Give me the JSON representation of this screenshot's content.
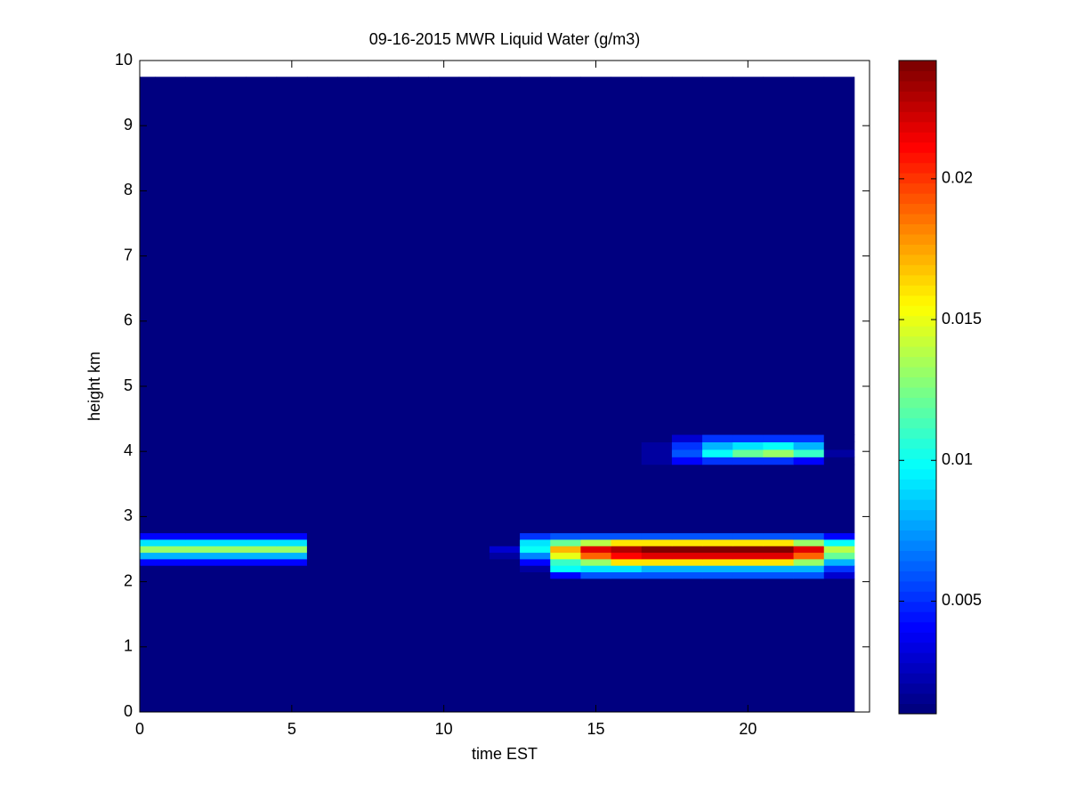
{
  "chart_data": {
    "type": "heatmap",
    "title": "09-16-2015 MWR Liquid Water (g/m3)",
    "x_label": "time EST",
    "y_label": "height km",
    "x": [
      0,
      0.5,
      1.5,
      2.5,
      3.5,
      4.5,
      5.5,
      6.5,
      7.5,
      8.5,
      9.5,
      10.5,
      11.5,
      12.5,
      13.5,
      14.5,
      15.5,
      16.5,
      17.5,
      18.5,
      19.5,
      20.5,
      21.5,
      22.5,
      23.5
    ],
    "y": [
      0,
      2.05,
      2.15,
      2.25,
      2.35,
      2.45,
      2.55,
      2.65,
      2.75,
      3.8,
      3.915,
      4.03,
      4.145,
      4.26,
      9.75
    ],
    "z": [
      [
        0.001,
        0.001,
        0.001,
        0.001,
        0.001,
        0.001,
        0.001,
        0.001,
        0.001,
        0.001,
        0.001,
        0.001,
        0.001,
        0.001,
        0.001,
        0.001,
        0.001,
        0.001,
        0.001,
        0.001,
        0.001,
        0.001,
        0.001,
        0.001
      ],
      [
        0.001,
        0.001,
        0.001,
        0.001,
        0.001,
        0.001,
        0.001,
        0.001,
        0.001,
        0.001,
        0.001,
        0.001,
        0.001,
        0.001,
        0.004,
        0.006,
        0.006,
        0.006,
        0.006,
        0.006,
        0.006,
        0.006,
        0.006,
        0.003
      ],
      [
        0.001,
        0.001,
        0.001,
        0.001,
        0.001,
        0.001,
        0.001,
        0.001,
        0.001,
        0.001,
        0.001,
        0.001,
        0.001,
        0.002,
        0.01,
        0.009,
        0.009,
        0.008,
        0.008,
        0.008,
        0.008,
        0.008,
        0.008,
        0.005
      ],
      [
        0.004,
        0.004,
        0.004,
        0.004,
        0.004,
        0.004,
        0.001,
        0.001,
        0.001,
        0.001,
        0.001,
        0.001,
        0.001,
        0.004,
        0.011,
        0.013,
        0.016,
        0.016,
        0.016,
        0.016,
        0.016,
        0.016,
        0.013,
        0.008
      ],
      [
        0.008,
        0.008,
        0.008,
        0.008,
        0.008,
        0.008,
        0.001,
        0.001,
        0.001,
        0.001,
        0.001,
        0.001,
        0.002,
        0.007,
        0.015,
        0.019,
        0.021,
        0.022,
        0.022,
        0.022,
        0.022,
        0.022,
        0.019,
        0.012
      ],
      [
        0.013,
        0.013,
        0.013,
        0.013,
        0.013,
        0.013,
        0.001,
        0.001,
        0.001,
        0.001,
        0.001,
        0.001,
        0.003,
        0.01,
        0.017,
        0.022,
        0.023,
        0.024,
        0.024,
        0.024,
        0.024,
        0.024,
        0.022,
        0.014
      ],
      [
        0.009,
        0.009,
        0.009,
        0.009,
        0.009,
        0.009,
        0.001,
        0.001,
        0.001,
        0.001,
        0.001,
        0.001,
        0.001,
        0.009,
        0.012,
        0.014,
        0.016,
        0.016,
        0.016,
        0.016,
        0.016,
        0.016,
        0.013,
        0.01
      ],
      [
        0.004,
        0.004,
        0.004,
        0.004,
        0.004,
        0.004,
        0.001,
        0.001,
        0.001,
        0.001,
        0.001,
        0.001,
        0.001,
        0.005,
        0.006,
        0.006,
        0.006,
        0.006,
        0.006,
        0.006,
        0.006,
        0.006,
        0.006,
        0.004
      ],
      [
        0.001,
        0.001,
        0.001,
        0.001,
        0.001,
        0.001,
        0.001,
        0.001,
        0.001,
        0.001,
        0.001,
        0.001,
        0.001,
        0.001,
        0.001,
        0.001,
        0.001,
        0.001,
        0.001,
        0.001,
        0.001,
        0.001,
        0.001,
        0.001
      ],
      [
        0.001,
        0.001,
        0.001,
        0.001,
        0.001,
        0.001,
        0.001,
        0.001,
        0.001,
        0.001,
        0.001,
        0.001,
        0.001,
        0.001,
        0.001,
        0.001,
        0.001,
        0.002,
        0.004,
        0.005,
        0.005,
        0.005,
        0.004,
        0.001
      ],
      [
        0.001,
        0.001,
        0.001,
        0.001,
        0.001,
        0.001,
        0.001,
        0.001,
        0.001,
        0.001,
        0.001,
        0.001,
        0.001,
        0.001,
        0.001,
        0.001,
        0.001,
        0.002,
        0.006,
        0.01,
        0.012,
        0.013,
        0.011,
        0.002
      ],
      [
        0.001,
        0.001,
        0.001,
        0.001,
        0.001,
        0.001,
        0.001,
        0.001,
        0.001,
        0.001,
        0.001,
        0.001,
        0.001,
        0.001,
        0.001,
        0.001,
        0.001,
        0.002,
        0.005,
        0.008,
        0.009,
        0.01,
        0.008,
        0.001
      ],
      [
        0.001,
        0.001,
        0.001,
        0.001,
        0.001,
        0.001,
        0.001,
        0.001,
        0.001,
        0.001,
        0.001,
        0.001,
        0.001,
        0.001,
        0.001,
        0.001,
        0.001,
        0.001,
        0.003,
        0.005,
        0.005,
        0.005,
        0.005,
        0.001
      ],
      [
        0.001,
        0.001,
        0.001,
        0.001,
        0.001,
        0.001,
        0.001,
        0.001,
        0.001,
        0.001,
        0.001,
        0.001,
        0.001,
        0.001,
        0.001,
        0.001,
        0.001,
        0.001,
        0.001,
        0.001,
        0.001,
        0.001,
        0.001,
        0.001
      ]
    ],
    "xlim": [
      0,
      24
    ],
    "xticks": [
      0,
      5,
      10,
      15,
      20
    ],
    "ylim": [
      0,
      10
    ],
    "yticks": [
      0,
      1,
      2,
      3,
      4,
      5,
      6,
      7,
      8,
      9,
      10
    ],
    "colormap": "jet",
    "clim": [
      0.001,
      0.0242
    ],
    "cticks": [
      0.005,
      0.01,
      0.015,
      0.02
    ]
  }
}
